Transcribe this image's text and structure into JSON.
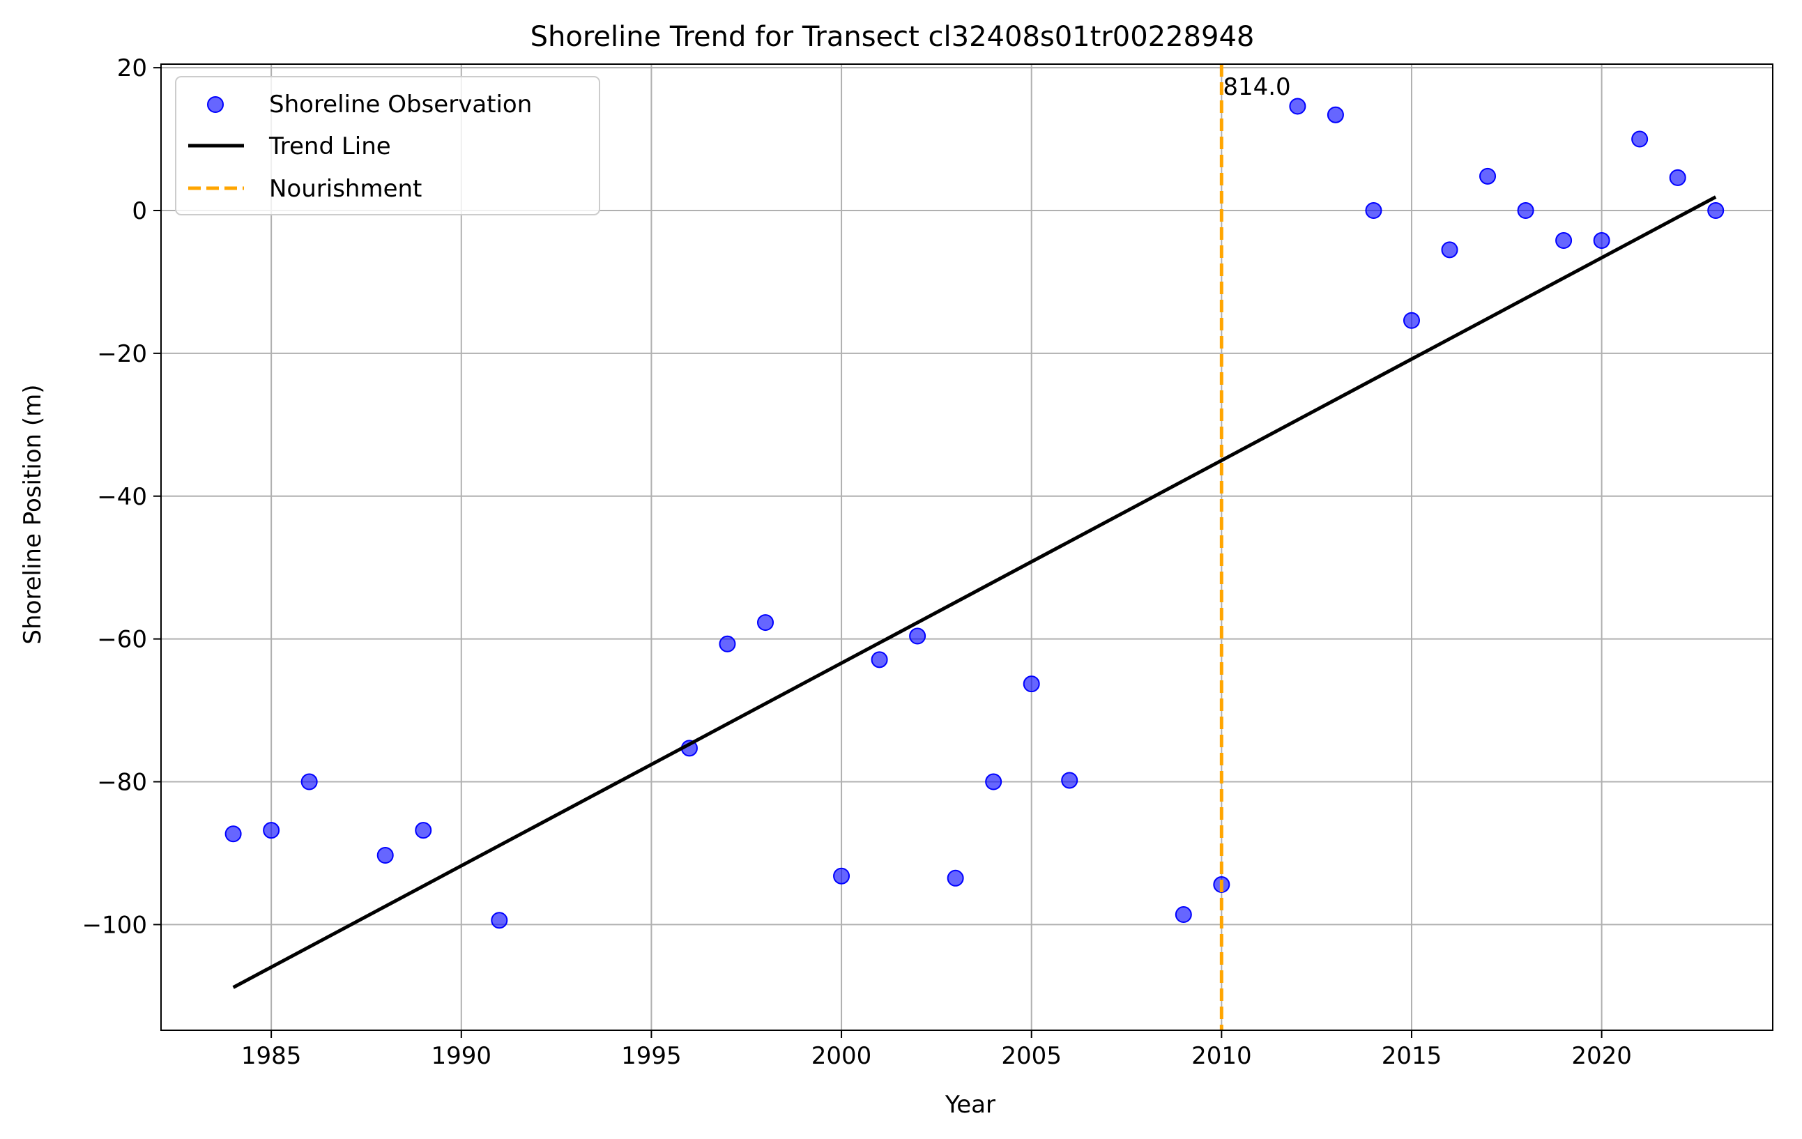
{
  "chart_data": {
    "type": "scatter",
    "title": "Shoreline Trend for Transect cl32408s01tr00228948",
    "xlabel": "Year",
    "ylabel": "Shoreline Position (m)",
    "xlim": [
      1982.1,
      2024.5
    ],
    "ylim": [
      -114.8,
      20.5
    ],
    "xticks": [
      1985,
      1990,
      1995,
      2000,
      2005,
      2010,
      2015,
      2020
    ],
    "xtick_labels": [
      "1985",
      "1990",
      "1995",
      "2000",
      "2005",
      "2010",
      "2015",
      "2020"
    ],
    "yticks": [
      20,
      0,
      -20,
      -40,
      -60,
      -80,
      -100
    ],
    "ytick_labels": [
      "20",
      "0",
      "−20",
      "−40",
      "−60",
      "−80",
      "−100"
    ],
    "grid": true,
    "legend_position": "top-left",
    "series": [
      {
        "name": "Shoreline Observation",
        "kind": "scatter",
        "color": "#0000ff",
        "x": [
          1984,
          1985,
          1986,
          1988,
          1989,
          1991,
          1996,
          1997,
          1998,
          2000,
          2001,
          2002,
          2003,
          2004,
          2005,
          2006,
          2009,
          2010,
          2012,
          2013,
          2014,
          2015,
          2016,
          2017,
          2018,
          2019,
          2020,
          2021,
          2022,
          2023
        ],
        "y": [
          -87.3,
          -86.8,
          -80.0,
          -90.3,
          -86.8,
          -99.4,
          -75.3,
          -60.7,
          -57.7,
          -93.2,
          -62.9,
          -59.6,
          -93.5,
          -80.0,
          -66.3,
          -79.8,
          -98.6,
          -94.4,
          14.6,
          13.4,
          0.0,
          -15.4,
          -5.5,
          4.8,
          0.0,
          -4.2,
          -4.2,
          10.0,
          4.6,
          0.0
        ]
      },
      {
        "name": "Trend Line",
        "kind": "line",
        "color": "#000000",
        "x": [
          1984,
          2023
        ],
        "y": [
          -108.8,
          1.9
        ]
      },
      {
        "name": "Nourishment",
        "kind": "vline",
        "color": "#ffa500",
        "x": 2010
      }
    ],
    "annotations": [
      {
        "text": "814.0",
        "x": 2010,
        "y": 16.0
      }
    ]
  }
}
